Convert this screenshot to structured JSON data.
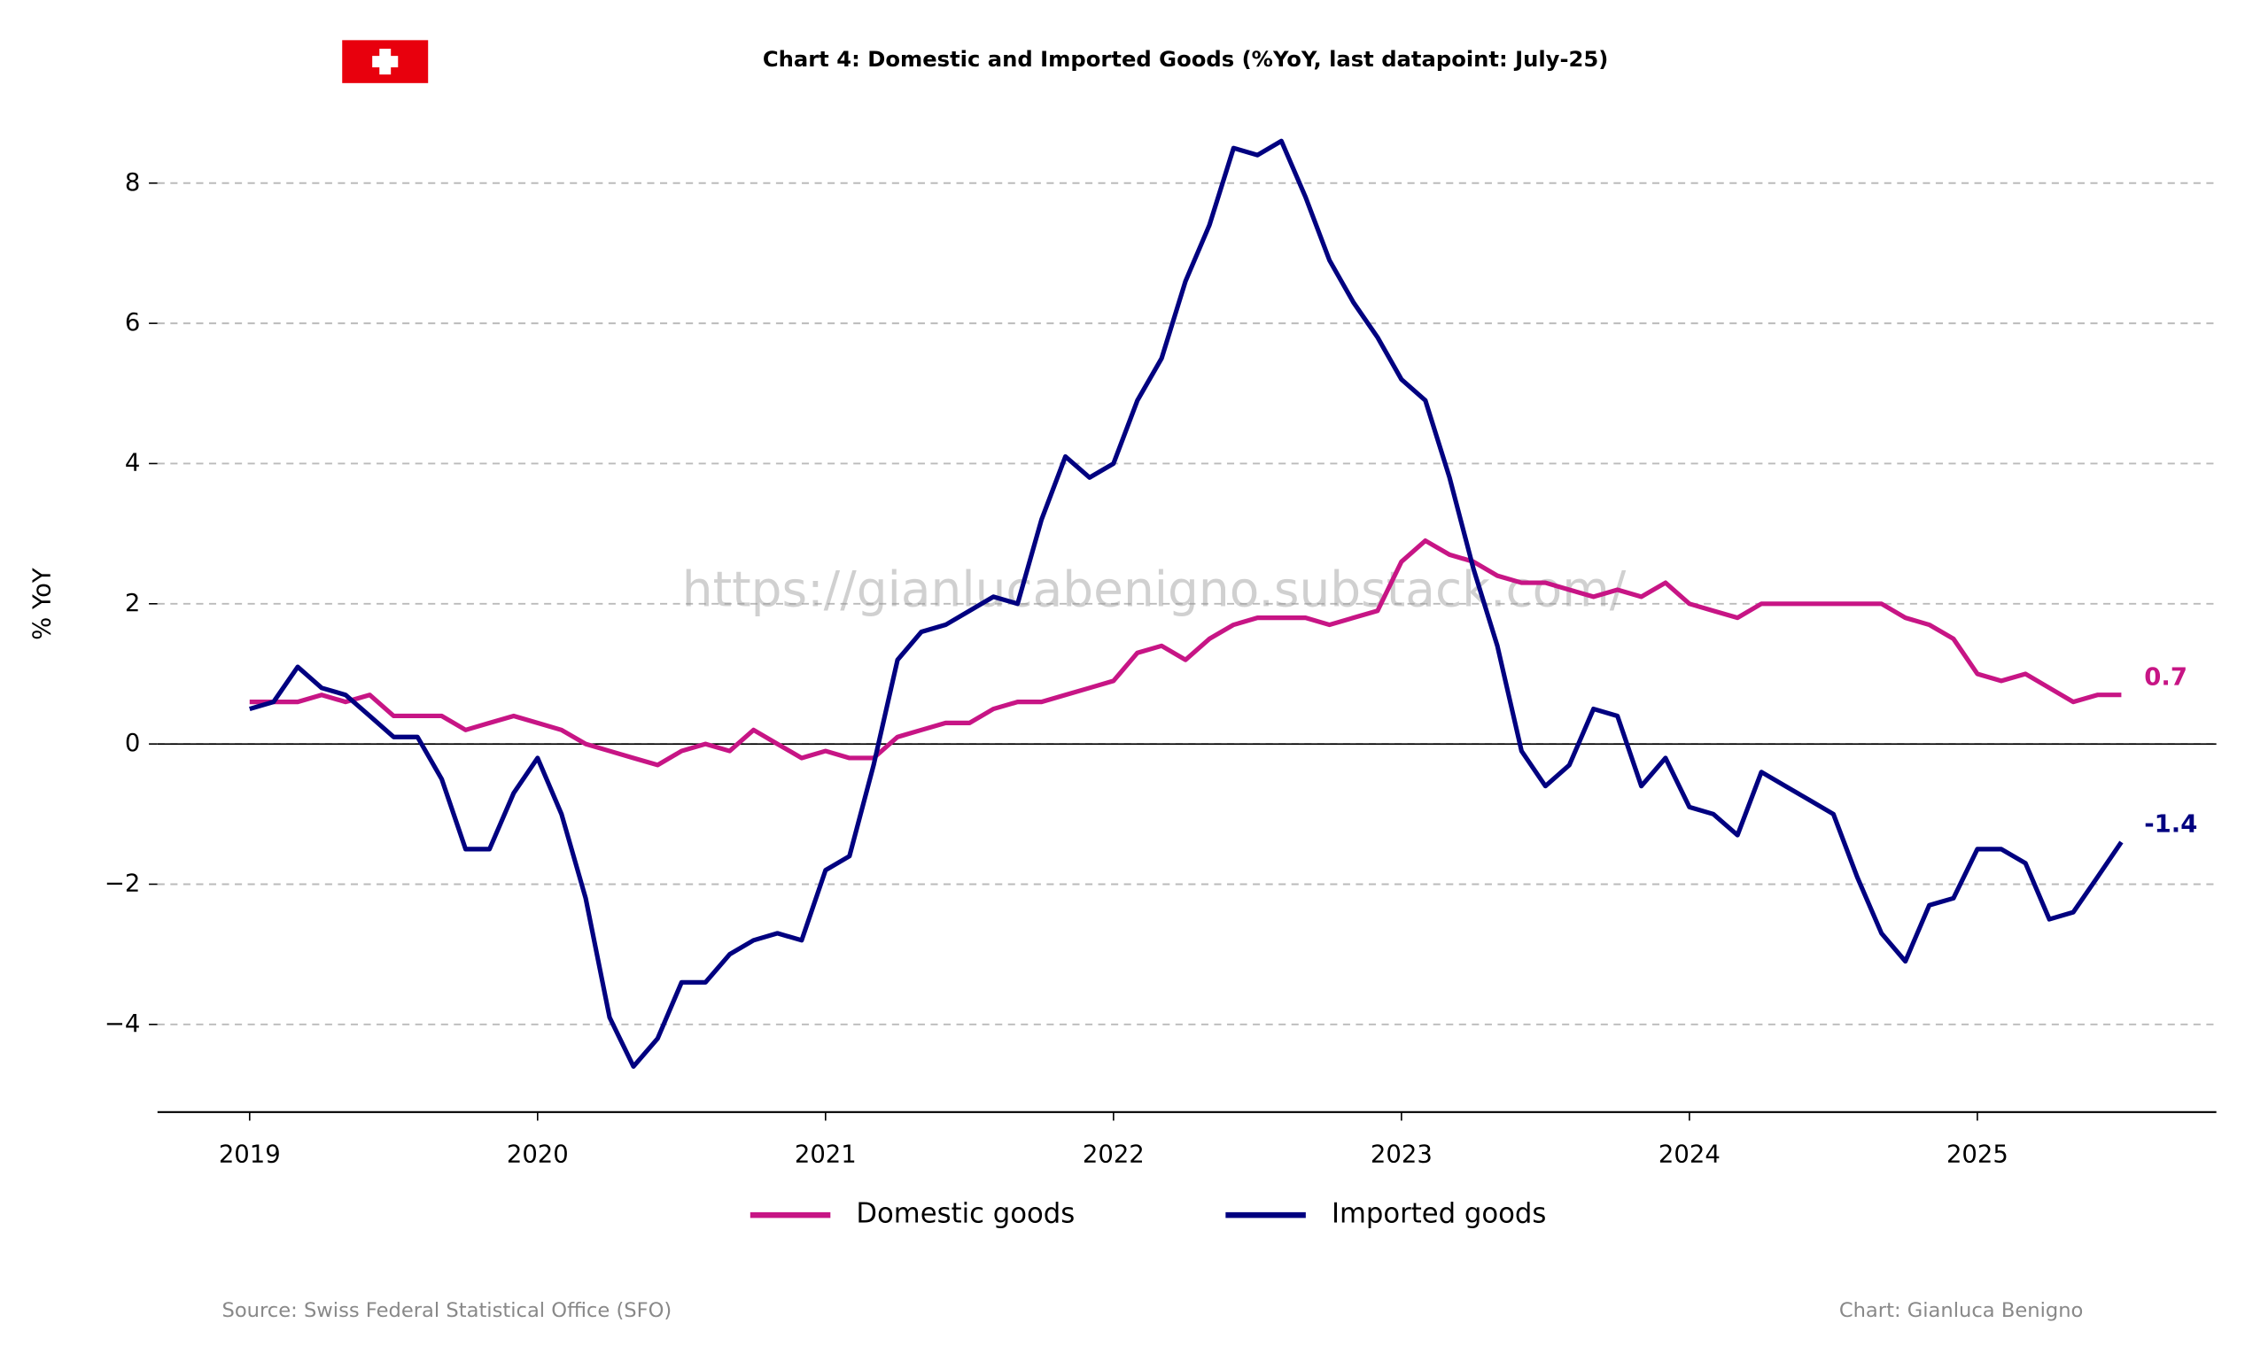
{
  "chart_data": {
    "type": "line",
    "title": "Chart 4: Domestic and Imported Goods (%YoY, last datapoint: July-25)",
    "y_label": "% YoY",
    "watermark": "https://gianlucabenigno.substack.com/",
    "source": "Source: Swiss Federal Statistical Office (SFO)",
    "credit": "Chart: Gianluca Benigno",
    "x": [
      2019,
      2019.083,
      2019.167,
      2019.25,
      2019.333,
      2019.417,
      2019.5,
      2019.583,
      2019.667,
      2019.75,
      2019.833,
      2019.917,
      2020,
      2020.083,
      2020.167,
      2020.25,
      2020.333,
      2020.417,
      2020.5,
      2020.583,
      2020.667,
      2020.75,
      2020.833,
      2020.917,
      2021,
      2021.083,
      2021.167,
      2021.25,
      2021.333,
      2021.417,
      2021.5,
      2021.583,
      2021.667,
      2021.75,
      2021.833,
      2021.917,
      2022,
      2022.083,
      2022.167,
      2022.25,
      2022.333,
      2022.417,
      2022.5,
      2022.583,
      2022.667,
      2022.75,
      2022.833,
      2022.917,
      2023,
      2023.083,
      2023.167,
      2023.25,
      2023.333,
      2023.417,
      2023.5,
      2023.583,
      2023.667,
      2023.75,
      2023.833,
      2023.917,
      2024,
      2024.083,
      2024.167,
      2024.25,
      2024.333,
      2024.417,
      2024.5,
      2024.583,
      2024.667,
      2024.75,
      2024.833,
      2024.917,
      2025,
      2025.083,
      2025.167,
      2025.25,
      2025.333,
      2025.417,
      2025.5
    ],
    "series": [
      {
        "name": "Domestic goods",
        "color": "#c71585",
        "values": [
          0.6,
          0.6,
          0.6,
          0.7,
          0.6,
          0.7,
          0.4,
          0.4,
          0.4,
          0.2,
          0.3,
          0.4,
          0.3,
          0.2,
          0.0,
          -0.1,
          -0.2,
          -0.3,
          -0.1,
          0.0,
          -0.1,
          0.2,
          0.0,
          -0.2,
          -0.1,
          -0.2,
          -0.2,
          0.1,
          0.2,
          0.3,
          0.3,
          0.5,
          0.6,
          0.6,
          0.7,
          0.8,
          0.9,
          1.3,
          1.4,
          1.2,
          1.5,
          1.7,
          1.8,
          1.8,
          1.8,
          1.7,
          1.8,
          1.9,
          2.6,
          2.9,
          2.7,
          2.6,
          2.4,
          2.3,
          2.3,
          2.2,
          2.1,
          2.2,
          2.1,
          2.3,
          2.0,
          1.9,
          1.8,
          2.0,
          2.0,
          2.0,
          2.0,
          2.0,
          2.0,
          1.8,
          1.7,
          1.5,
          1.0,
          0.9,
          1.0,
          0.8,
          0.6,
          0.7,
          0.7
        ]
      },
      {
        "name": "Imported goods",
        "color": "#000080",
        "values": [
          0.5,
          0.6,
          1.1,
          0.8,
          0.7,
          0.4,
          0.1,
          0.1,
          -0.5,
          -1.5,
          -1.5,
          -0.7,
          -0.2,
          -1.0,
          -2.2,
          -3.9,
          -4.6,
          -4.2,
          -3.4,
          -3.4,
          -3.0,
          -2.8,
          -2.7,
          -2.8,
          -1.8,
          -1.6,
          -0.3,
          1.2,
          1.6,
          1.7,
          1.9,
          2.1,
          2.0,
          3.2,
          4.1,
          3.8,
          4.0,
          4.9,
          5.5,
          6.6,
          7.4,
          8.5,
          8.4,
          8.6,
          7.8,
          6.9,
          6.3,
          5.8,
          5.2,
          4.9,
          3.8,
          2.5,
          1.4,
          -0.1,
          -0.6,
          -0.3,
          0.5,
          0.4,
          -0.6,
          -0.2,
          -0.9,
          -1.0,
          -1.3,
          -0.4,
          -0.6,
          -0.8,
          -1.0,
          -1.9,
          -2.7,
          -3.1,
          -2.3,
          -2.2,
          -1.5,
          -1.5,
          -1.7,
          -2.5,
          -2.4,
          -1.9,
          -1.4
        ]
      }
    ],
    "xlim": [
      2018.68,
      2025.83
    ],
    "xticks": [
      2019,
      2020,
      2021,
      2022,
      2023,
      2024,
      2025
    ],
    "ylim": [
      -5.25,
      9.1
    ],
    "yticks": [
      {
        "value": -4,
        "label": "−4"
      },
      {
        "value": -2,
        "label": "−2"
      },
      0,
      2,
      4,
      6,
      8
    ],
    "grid": true,
    "legend": "bottom"
  }
}
